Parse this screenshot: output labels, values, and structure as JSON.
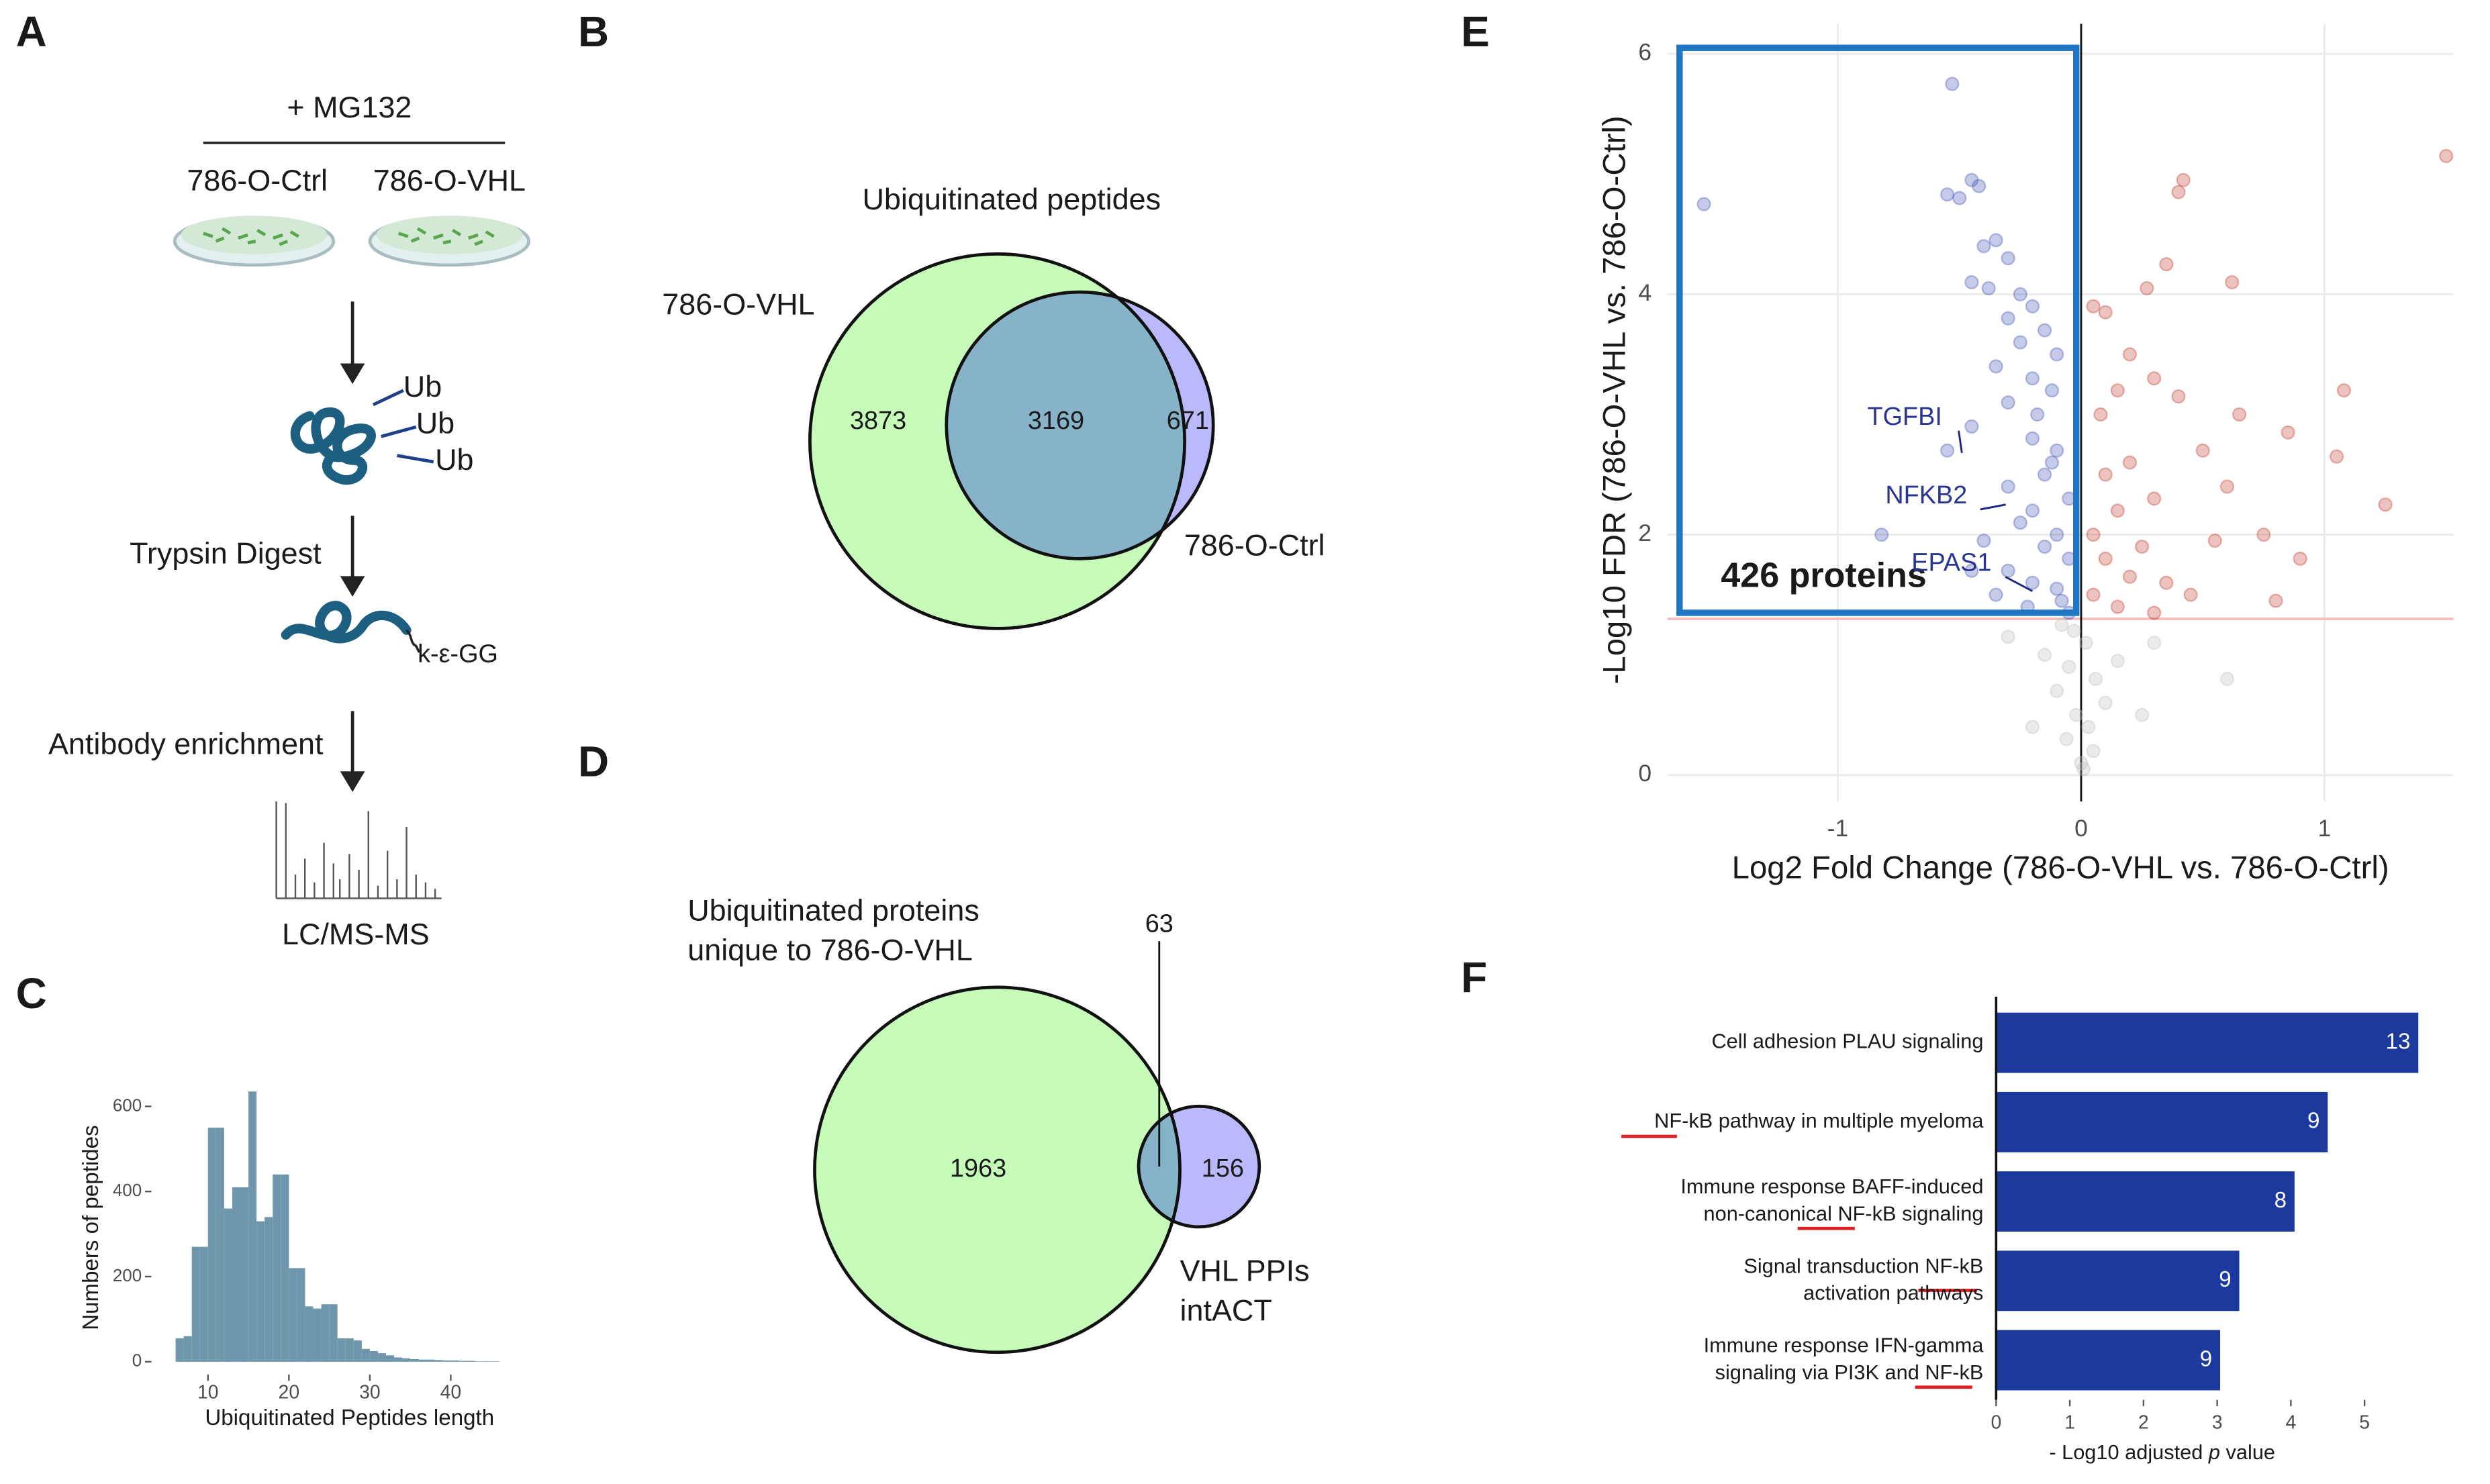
{
  "panel_labels": [
    "A",
    "B",
    "C",
    "D",
    "E",
    "F"
  ],
  "diagram": {
    "treatment": "+ MG132",
    "samples": [
      "786-O-Ctrl",
      "786-O-VHL"
    ],
    "tags": [
      "Ub",
      "Ub",
      "Ub"
    ],
    "steps": [
      "Trypsin Digest",
      "Antibody enrichment"
    ],
    "motif": "k-ε-GG",
    "readout": "LC/MS-MS"
  },
  "chart_data": [
    {
      "type": "venn",
      "title": [
        "Ubiquitinated peptides"
      ],
      "sets": [
        [
          "786-O-VHL"
        ],
        [
          "786-O-Ctrl"
        ]
      ],
      "values": [
        3873,
        3169,
        671
      ],
      "colors": [
        "#c6fbb9",
        "#b9b9fb",
        "#87b3c8"
      ]
    },
    {
      "type": "histogram",
      "xlabel": "Ubiquitinated Peptides length",
      "ylabel": "Numbers of peptides",
      "bins": [
        6,
        7,
        8,
        9,
        10,
        11,
        12,
        13,
        14,
        15,
        16,
        17,
        18,
        19,
        20,
        21,
        22,
        23,
        24,
        25,
        26,
        27,
        28,
        29,
        30,
        31,
        32,
        33,
        34,
        35,
        36,
        37,
        38,
        39,
        40,
        41,
        42,
        43,
        44,
        45,
        46
      ],
      "counts": [
        55,
        60,
        270,
        270,
        550,
        550,
        360,
        410,
        410,
        635,
        330,
        340,
        440,
        440,
        220,
        220,
        130,
        125,
        135,
        135,
        55,
        55,
        50,
        30,
        25,
        20,
        15,
        10,
        8,
        6,
        5,
        5,
        4,
        3,
        3,
        2,
        2,
        1,
        1,
        1
      ],
      "color": "#6f97ab",
      "xlim": [
        3,
        52
      ],
      "ylim": [
        -30,
        660
      ],
      "xticks": [
        10,
        20,
        30,
        40
      ],
      "yticks": [
        0,
        200,
        400,
        600
      ]
    },
    {
      "type": "venn",
      "title": [],
      "sets": [
        [
          "Ubiquitinated proteins",
          "unique to 786-O-VHL"
        ],
        [
          "VHL PPIs",
          "intACT"
        ]
      ],
      "values": [
        1963,
        63,
        156
      ],
      "colors": [
        "#c6fbb9",
        "#b9b9fb",
        "#87b3c8"
      ]
    },
    {
      "type": "scatter",
      "xlabel": "Log2 Fold Change (786-O-VHL vs. 786-O-Ctrl)",
      "ylabel": "-Log10 FDR (786-O-VHL vs. 786-O-Ctrl)",
      "xlim": [
        -1.7,
        1.53
      ],
      "ylim": [
        -0.22,
        6.25
      ],
      "xticks": [
        -1,
        0,
        1
      ],
      "yticks": [
        0,
        2,
        4,
        6
      ],
      "grid": true,
      "hline": 1.3,
      "box": {
        "x": [
          -1.65,
          -0.02
        ],
        "y": [
          1.35,
          6.05
        ],
        "label": "426 proteins"
      },
      "series": [
        {
          "color": "#3f51b5",
          "x": [
            -1.55,
            -0.53,
            -0.55,
            -0.5,
            -0.45,
            -0.42,
            -0.4,
            -0.35,
            -0.3,
            -0.45,
            -0.38,
            -0.25,
            -0.2,
            -0.3,
            -0.15,
            -0.25,
            -0.1,
            -0.35,
            -0.2,
            -0.12,
            -0.3,
            -0.45,
            -0.55,
            -0.2,
            -0.1,
            -0.15,
            -0.3,
            -0.05,
            -0.2,
            -0.25,
            -0.1,
            -0.4,
            -0.82,
            -0.15,
            -0.05,
            -0.3,
            -0.2,
            -0.1,
            -0.08,
            -0.35,
            -0.22,
            -0.05,
            -0.45,
            -0.12,
            -0.18
          ],
          "y": [
            4.75,
            5.75,
            4.83,
            4.8,
            4.95,
            4.9,
            4.4,
            4.45,
            4.3,
            4.1,
            4.05,
            4.0,
            3.9,
            3.8,
            3.7,
            3.6,
            3.5,
            3.4,
            3.3,
            3.2,
            3.1,
            2.9,
            2.7,
            2.8,
            2.7,
            2.5,
            2.4,
            2.3,
            2.2,
            2.1,
            2.0,
            1.95,
            2.0,
            1.9,
            1.8,
            1.7,
            1.6,
            1.55,
            1.45,
            1.5,
            1.4,
            1.35,
            1.7,
            2.6,
            3.0
          ]
        },
        {
          "color": "#c0392b",
          "x": [
            1.5,
            0.42,
            0.4,
            0.62,
            0.35,
            0.27,
            0.1,
            0.05,
            0.2,
            0.3,
            0.15,
            0.08,
            1.08,
            0.4,
            0.65,
            0.85,
            1.05,
            1.25,
            0.5,
            0.2,
            0.1,
            0.3,
            0.6,
            0.15,
            0.05,
            0.25,
            0.75,
            0.55,
            0.1,
            0.2,
            0.35,
            0.45,
            0.05,
            0.15,
            0.8,
            0.3,
            0.9
          ],
          "y": [
            5.15,
            4.95,
            4.85,
            4.1,
            4.25,
            4.05,
            3.85,
            3.9,
            3.5,
            3.3,
            3.2,
            3.0,
            3.2,
            3.15,
            3.0,
            2.85,
            2.65,
            2.25,
            2.7,
            2.6,
            2.5,
            2.3,
            2.4,
            2.2,
            2.0,
            1.9,
            2.0,
            1.95,
            1.8,
            1.65,
            1.6,
            1.5,
            1.5,
            1.4,
            1.45,
            1.35,
            1.8
          ]
        },
        {
          "color": "#bdbdbd",
          "x": [
            -0.03,
            0.02,
            -0.05,
            0.06,
            -0.1,
            0.1,
            -0.02,
            0.03,
            -0.06,
            0.05,
            0.0,
            -0.15,
            0.15,
            0.3,
            -0.3,
            0.25,
            -0.2,
            0.6,
            0.01,
            -0.08
          ],
          "y": [
            1.2,
            1.1,
            0.9,
            0.8,
            0.7,
            0.6,
            0.5,
            0.4,
            0.3,
            0.2,
            0.1,
            1.0,
            0.95,
            1.1,
            1.15,
            0.5,
            0.4,
            0.8,
            0.05,
            1.25
          ]
        }
      ],
      "annotations": [
        {
          "text": "TGFBI",
          "x": -0.49,
          "y": 2.68
        },
        {
          "text": "NFKB2",
          "x": -0.31,
          "y": 2.25
        },
        {
          "text": "EPAS1",
          "x": -0.2,
          "y": 1.53
        }
      ]
    },
    {
      "type": "hbar",
      "categories": [
        [
          "Cell adhesion PLAU signaling"
        ],
        [
          "NF-kB pathway in multiple myeloma"
        ],
        [
          "Immune response BAFF-induced",
          "non-canonical NF-kB signaling"
        ],
        [
          "Signal transduction NF-kB",
          "activation pathways"
        ],
        [
          "Immune response IFN-gamma",
          "signaling via PI3K and NF-kB"
        ]
      ],
      "values": [
        5.73,
        4.5,
        4.05,
        3.3,
        3.04
      ],
      "counts": [
        13,
        9,
        8,
        9,
        9
      ],
      "color": "#1c3a9e",
      "xlim": [
        0,
        5.8
      ],
      "xticks": [
        0,
        1,
        2,
        3,
        4,
        5
      ],
      "xlabel": [
        "- Log10 adjusted ",
        "p",
        " value"
      ]
    }
  ]
}
